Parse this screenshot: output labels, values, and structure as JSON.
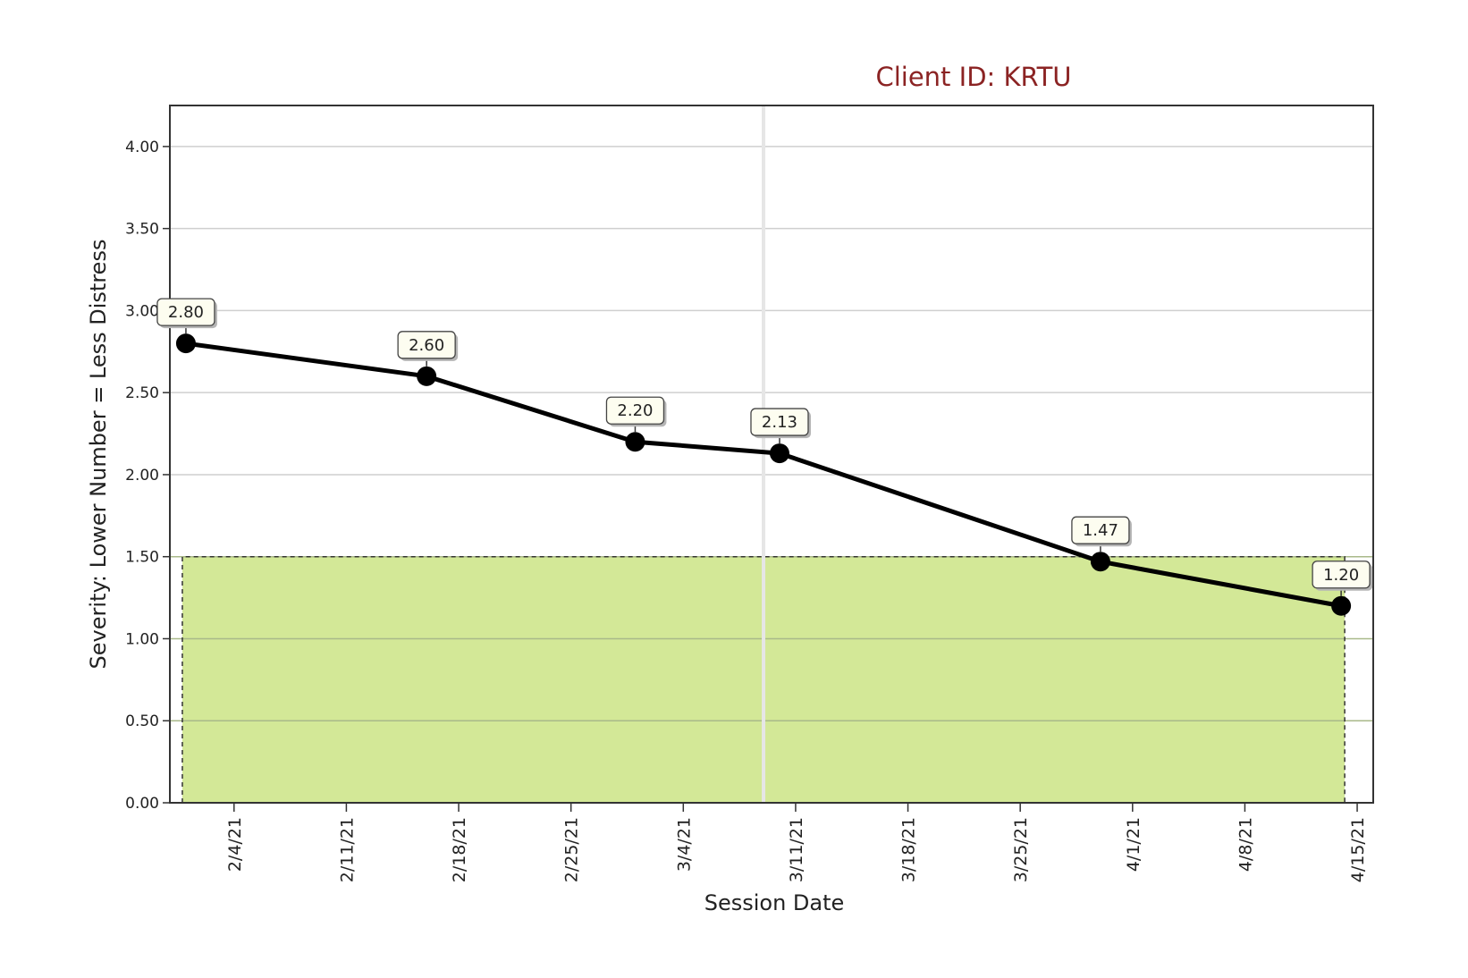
{
  "chart_data": {
    "type": "line",
    "title": "Client ID: KRTU",
    "xlabel": "Session Date",
    "ylabel": "Severity: Lower Number = Less Distress",
    "x_tick_labels": [
      "2/4/21",
      "2/11/21",
      "2/18/21",
      "2/25/21",
      "3/4/21",
      "3/11/21",
      "3/18/21",
      "3/25/21",
      "4/1/21",
      "4/8/21",
      "4/15/21"
    ],
    "y_tick_labels": [
      "0.00",
      "0.50",
      "1.00",
      "1.50",
      "2.00",
      "2.50",
      "3.00",
      "3.50",
      "4.00"
    ],
    "ylim": [
      0,
      4.25
    ],
    "xlim": [
      "2021-01-31",
      "2021-04-16"
    ],
    "grid": true,
    "legend": "none",
    "series": [
      {
        "color": "#000000",
        "points": [
          {
            "x": "2021-02-01",
            "y": 2.8,
            "label": "2.80"
          },
          {
            "x": "2021-02-16",
            "y": 2.6,
            "label": "2.60"
          },
          {
            "x": "2021-03-01",
            "y": 2.2,
            "label": "2.20"
          },
          {
            "x": "2021-03-10",
            "y": 2.13,
            "label": "2.13"
          },
          {
            "x": "2021-03-30",
            "y": 1.47,
            "label": "1.47"
          },
          {
            "x": "2021-04-14",
            "y": 1.2,
            "label": "1.20"
          }
        ]
      }
    ],
    "target_band": {
      "y_from": 0,
      "y_to": 1.5,
      "x_from": "2021-02-01",
      "x_to": "2021-04-14",
      "color": "#d3e897"
    },
    "reference_line": {
      "x": "2021-03-09",
      "color": "#e6e6e6"
    }
  }
}
